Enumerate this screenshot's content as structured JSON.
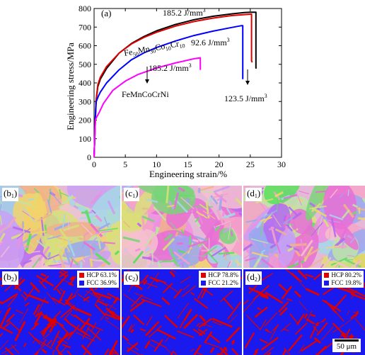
{
  "chart_data": {
    "type": "line",
    "panel_label": "(a)",
    "xlabel": "Engineering strain/%",
    "ylabel": "Engineering stress/MPa",
    "xlim": [
      0,
      30
    ],
    "ylim": [
      0,
      800
    ],
    "xticks": [
      0,
      5,
      10,
      15,
      20,
      25,
      30
    ],
    "yticks": [
      0,
      100,
      200,
      300,
      400,
      500,
      600,
      700,
      800
    ],
    "series": [
      {
        "color": "#000000",
        "x": [
          0,
          0.3,
          0.6,
          1,
          2,
          4,
          6,
          8,
          10,
          13,
          16,
          19,
          22,
          24,
          25,
          25.9,
          25.9,
          26.0
        ],
        "y": [
          0,
          300,
          380,
          420,
          478,
          560,
          612,
          650,
          680,
          714,
          740,
          758,
          771,
          778,
          780,
          780,
          480,
          478
        ]
      },
      {
        "color": "#e00000",
        "x": [
          0,
          0.3,
          0.6,
          1,
          2,
          4,
          6,
          8,
          10,
          13,
          16,
          19,
          22,
          24.5,
          25.2,
          25.2,
          25.3
        ],
        "y": [
          0,
          300,
          390,
          430,
          488,
          560,
          610,
          645,
          672,
          705,
          730,
          748,
          762,
          768,
          770,
          520,
          510
        ]
      },
      {
        "color": "#0000ff",
        "x": [
          0,
          0.2,
          0.35,
          0.7,
          1,
          2,
          4,
          6,
          8,
          10,
          13,
          16,
          19,
          22,
          23.6,
          23.8,
          23.8
        ],
        "y": [
          0,
          220,
          300,
          330,
          350,
          400,
          470,
          525,
          562,
          590,
          625,
          655,
          678,
          698,
          708,
          708,
          420
        ]
      },
      {
        "color": "#ff00ff",
        "x": [
          0,
          0.2,
          0.4,
          0.8,
          1.5,
          3,
          5,
          7,
          10,
          13,
          16,
          17.0,
          17.0
        ],
        "y": [
          0,
          200,
          215,
          240,
          290,
          360,
          410,
          445,
          480,
          507,
          530,
          535,
          470
        ]
      }
    ],
    "annotations": {
      "top_value": "185.2 J/mm",
      "fe50_prefix": "Fe",
      "fe50_sub1": "50",
      "fe50_mn": "Mn",
      "fe50_sub2": "30",
      "fe50_co": "Co",
      "fe50_sub3": "10",
      "fe50_cr": "Cr",
      "fe50_sub4": "10",
      "mid_value": "92.6 J/mm",
      "cantor_value": "185.2 J/mm",
      "cantor_name": "FeMnCoCrNi",
      "low_value": "123.5 J/mm",
      "unit_sup": "3"
    }
  },
  "panels": {
    "b1": {
      "letter": "(b",
      "sub": "1",
      "close": ")"
    },
    "c1": {
      "letter": "(c",
      "sub": "1",
      "close": ")"
    },
    "d1": {
      "letter": "(d",
      "sub": "1",
      "close": ")"
    },
    "b2": {
      "letter": "(b",
      "sub": "2",
      "close": ")",
      "hcp": "HCP 63.1%",
      "fcc": "FCC 36.9%"
    },
    "c2": {
      "letter": "(c",
      "sub": "2",
      "close": ")",
      "hcp": "HCP 78.8%",
      "fcc": "FCC 21.2%"
    },
    "d2": {
      "letter": "(d",
      "sub": "2",
      "close": ")",
      "hcp": "HCP 80.2%",
      "fcc": "FCC 19.8%"
    }
  },
  "phase_colors": {
    "hcp": "#e00000",
    "fcc": "#1a1aee"
  },
  "scale_bar": "50 μm"
}
